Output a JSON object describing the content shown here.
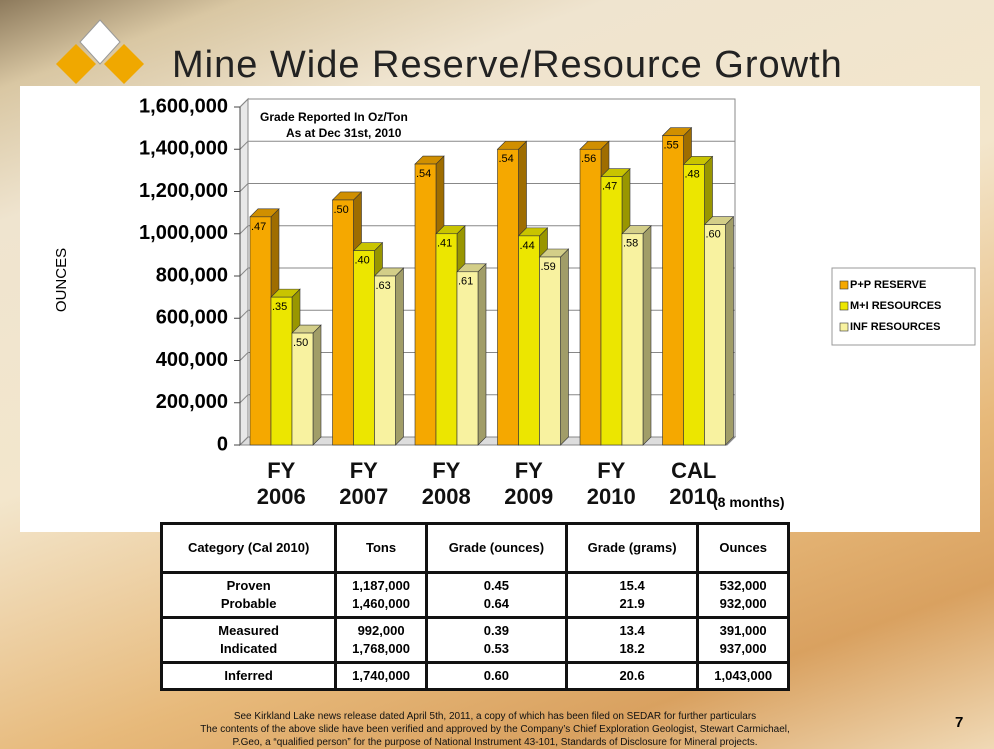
{
  "title": "Mine Wide Reserve/Resource Growth",
  "chart_data": {
    "type": "bar3d",
    "y_label": "OUNCES",
    "annotations": [
      "Grade Reported In Oz/Ton",
      "As at Dec 31st, 2010"
    ],
    "categories": [
      "FY 2006",
      "FY 2007",
      "FY 2008",
      "FY 2009",
      "FY 2010",
      "CAL 2010"
    ],
    "category_note": "(8 months)",
    "series": [
      {
        "name": "P+P RESERVE",
        "color": "#f5a800",
        "values": [
          1080000,
          1160000,
          1330000,
          1400000,
          1400000,
          1464000
        ],
        "grade_labels": [
          ".47",
          ".50",
          ".54",
          ".54",
          ".56",
          ".55"
        ]
      },
      {
        "name": "M+I RESOURCES",
        "color": "#ece600",
        "values": [
          700000,
          920000,
          1000000,
          990000,
          1270000,
          1328000
        ],
        "grade_labels": [
          ".35",
          ".40",
          ".41",
          ".44",
          ".47",
          ".48"
        ]
      },
      {
        "name": "INF RESOURCES",
        "color": "#f8f2a0",
        "values": [
          530000,
          800000,
          820000,
          890000,
          1000000,
          1043000
        ],
        "grade_labels": [
          ".50",
          ".63",
          ".61",
          ".59",
          ".58",
          ".60"
        ]
      }
    ],
    "ylim": [
      0,
      1600000
    ],
    "yticks": [
      0,
      {
        "value": 200000,
        "label": "200,000"
      },
      {
        "value": 400000,
        "label": "400,000"
      },
      {
        "value": 600000,
        "label": "600,000"
      },
      {
        "value": 800000,
        "label": "800,000"
      },
      {
        "value": 1000000,
        "label": "1,000,000"
      },
      {
        "value": 1200000,
        "label": "1,200,000"
      },
      {
        "value": 1400000,
        "label": "1,400,000"
      },
      {
        "value": 1600000,
        "label": "1,600,000"
      }
    ],
    "grid": true,
    "legend": "right"
  },
  "table": {
    "header": [
      "Category (Cal 2010)",
      "Tons",
      "Grade (ounces)",
      "Grade (grams)",
      "Ounces"
    ],
    "groups": [
      [
        [
          "Proven",
          "1,187,000",
          "0.45",
          "15.4",
          "532,000"
        ],
        [
          "Probable",
          "1,460,000",
          "0.64",
          "21.9",
          "932,000"
        ]
      ],
      [
        [
          "Measured",
          "992,000",
          "0.39",
          "13.4",
          "391,000"
        ],
        [
          "Indicated",
          "1,768,000",
          "0.53",
          "18.2",
          "937,000"
        ]
      ],
      [
        [
          "Inferred",
          "1,740,000",
          "0.60",
          "20.6",
          "1,043,000"
        ]
      ]
    ]
  },
  "footer": [
    "See Kirkland Lake news release dated April 5th, 2011, a copy of which has been filed on SEDAR for further particulars",
    "The contents of the above slide have been verified and approved by the Company’s Chief Exploration Geologist, Stewart Carmichael,",
    "P.Geo, a “qualified person” for the purpose of National Instrument 43-101, Standards of Disclosure for Mineral projects."
  ],
  "slide_number": "7"
}
